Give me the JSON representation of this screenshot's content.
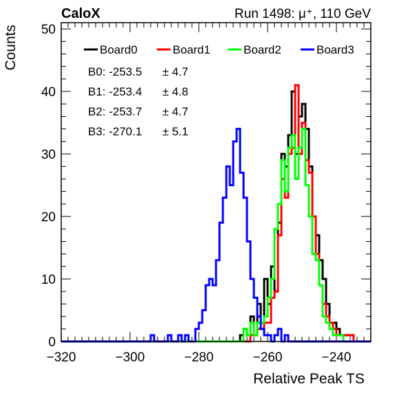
{
  "header": {
    "experiment": "CaloX",
    "run_info": "Run 1498:   μ⁺, 110 GeV"
  },
  "chart_data": {
    "type": "histogram",
    "xlabel": "Relative Peak TS",
    "ylabel": "Counts",
    "xlim": [
      -320,
      -230
    ],
    "ylim": [
      0,
      51
    ],
    "bin_width": 1,
    "x_ticks": [
      "−320",
      "−300",
      "−280",
      "−260",
      "−240"
    ],
    "y_ticks": [
      "0",
      "10",
      "20",
      "30",
      "40",
      "50"
    ],
    "legend_position": "top",
    "colors": {
      "Board0": "#000000",
      "Board1": "#ff0000",
      "Board2": "#00ff00",
      "Board3": "#0000ff"
    },
    "stats": [
      {
        "label": "B0: -253.5",
        "err": "± 4.7"
      },
      {
        "label": "B1: -253.4",
        "err": "± 4.8"
      },
      {
        "label": "B2: -253.7",
        "err": "± 4.7"
      },
      {
        "label": "B3: -270.1",
        "err": "± 5.1"
      }
    ],
    "series": [
      {
        "name": "Board0",
        "start": -268,
        "counts": [
          1,
          2,
          1,
          4,
          1,
          6,
          2,
          10,
          6,
          12,
          8,
          19,
          30,
          28,
          33,
          40,
          30,
          36,
          38,
          34,
          28,
          20,
          17,
          13,
          10,
          6,
          3,
          3,
          2,
          1,
          1,
          1,
          1
        ]
      },
      {
        "name": "Board1",
        "start": -268,
        "counts": [
          0,
          0,
          0,
          1,
          1,
          2,
          2,
          3,
          3,
          7,
          8,
          17,
          26,
          23,
          30,
          31,
          41,
          30,
          35,
          29,
          27,
          20,
          14,
          9,
          6,
          4,
          3,
          2,
          1,
          1,
          1,
          1,
          1
        ]
      },
      {
        "name": "Board2",
        "start": -268,
        "counts": [
          0,
          2,
          1,
          3,
          1,
          3,
          3,
          4,
          7,
          10,
          18,
          22,
          29,
          24,
          31,
          33,
          26,
          31,
          34,
          25,
          20,
          14,
          13,
          9,
          4,
          3,
          2,
          1,
          1,
          1,
          0,
          0,
          0
        ]
      },
      {
        "name": "Board3",
        "start": -294,
        "counts": [
          1,
          0,
          0,
          0,
          0,
          1,
          0,
          0,
          1,
          0,
          1,
          0,
          0,
          2,
          3,
          5,
          9,
          10,
          9,
          13,
          19,
          23,
          28,
          25,
          32,
          34,
          27,
          23,
          16,
          10,
          7,
          4,
          2,
          1,
          1,
          0,
          1,
          2,
          0,
          1
        ]
      }
    ]
  }
}
